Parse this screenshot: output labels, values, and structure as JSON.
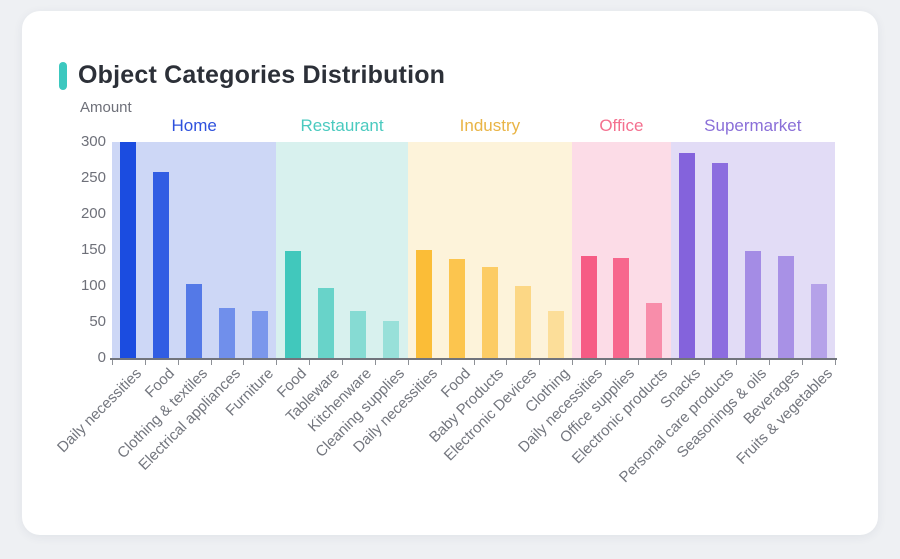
{
  "page": {
    "background_color": "#eef0f3",
    "card_color": "#ffffff"
  },
  "header": {
    "title": "Object Categories Distribution",
    "accent_color": "#3cc8bf"
  },
  "chart_data": {
    "type": "bar",
    "title": "Object Categories Distribution",
    "ylabel": "Amount",
    "xlabel": "",
    "ylim": [
      0,
      300
    ],
    "yticks": [
      0,
      50,
      100,
      150,
      200,
      250,
      300
    ],
    "grid": false,
    "legend_position": "none",
    "axis_color": "#71747c",
    "tick_label_color": "#6e7079",
    "x_label_color": "#73767e",
    "groups": [
      {
        "name": "Home",
        "label_color": "#2e51dd",
        "bar_color": "#1b4ce0",
        "band_color": "#cdd7f6",
        "categories": [
          "Daily necessities",
          "Food",
          "Clothing & textiles",
          "Electrical appliances",
          "Furniture"
        ],
        "values": [
          300,
          258,
          103,
          70,
          65
        ],
        "opacities": [
          1,
          0.88,
          0.68,
          0.52,
          0.46
        ]
      },
      {
        "name": "Restaurant",
        "label_color": "#4acabf",
        "bar_color": "#41c8bc",
        "band_color": "#d8f1ee",
        "categories": [
          "Food",
          "Tableware",
          "Kitchenware",
          "Cleaning supplies"
        ],
        "values": [
          148,
          97,
          65,
          51
        ],
        "opacities": [
          1,
          0.74,
          0.54,
          0.42
        ]
      },
      {
        "name": "Industry",
        "label_color": "#e9b445",
        "bar_color": "#fbbd37",
        "band_color": "#fdf3da",
        "categories": [
          "Daily necessities",
          "Food",
          "Baby Products",
          "Electronic Devices",
          "Clothing"
        ],
        "values": [
          150,
          138,
          126,
          100,
          65
        ],
        "opacities": [
          1,
          0.86,
          0.72,
          0.52,
          0.4
        ]
      },
      {
        "name": "Office",
        "label_color": "#f4708f",
        "bar_color": "#f65c85",
        "band_color": "#fcdce7",
        "categories": [
          "Daily necessities",
          "Office supplies",
          "Electronic products"
        ],
        "values": [
          142,
          139,
          76
        ],
        "opacities": [
          1,
          0.92,
          0.62
        ]
      },
      {
        "name": "Supermarket",
        "label_color": "#8a6fd8",
        "bar_color": "#8463dc",
        "band_color": "#e2dcf6",
        "categories": [
          "Snacks",
          "Personal care products",
          "Seasonings & oils",
          "Beverages",
          "Fruits & vegetables"
        ],
        "values": [
          285,
          271,
          148,
          141,
          103
        ],
        "opacities": [
          1,
          0.92,
          0.66,
          0.62,
          0.48
        ]
      }
    ]
  }
}
